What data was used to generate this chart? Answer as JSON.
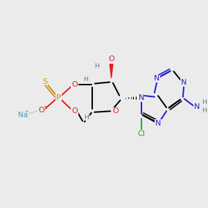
{
  "bg_color": "#ebebeb",
  "fig_size": [
    3.0,
    3.0
  ],
  "dpi": 100,
  "colors": {
    "C": "#000000",
    "N": "#2222cc",
    "O": "#dd2222",
    "S": "#c8900a",
    "P": "#dd7700",
    "Cl": "#22aa22",
    "Na": "#4499bb",
    "H": "#5a7575"
  }
}
